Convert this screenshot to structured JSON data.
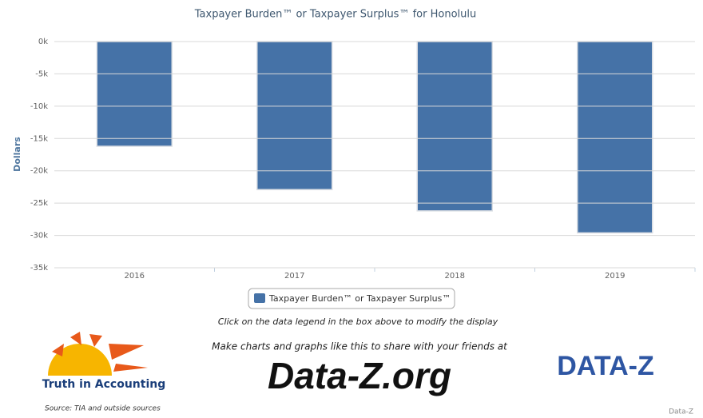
{
  "chart_data": {
    "type": "bar",
    "title": "Taxpayer Burden™ or Taxpayer Surplus™ for Honolulu",
    "y_label": "Dollars",
    "categories": [
      "2016",
      "2017",
      "2018",
      "2019"
    ],
    "series": [
      {
        "name": "Taxpayer Burden™ or Taxpayer Surplus™",
        "color": "#4572a7",
        "values": [
          -16200,
          -22900,
          -26200,
          -29600
        ]
      }
    ],
    "ylim": [
      -35000,
      0
    ],
    "yticks": [
      {
        "value": 0,
        "label": "0k"
      },
      {
        "value": -5000,
        "label": "-5k"
      },
      {
        "value": -10000,
        "label": "-10k"
      },
      {
        "value": -15000,
        "label": "-15k"
      },
      {
        "value": -20000,
        "label": "-20k"
      },
      {
        "value": -25000,
        "label": "-25k"
      },
      {
        "value": -30000,
        "label": "-30k"
      },
      {
        "value": -35000,
        "label": "-35k"
      }
    ],
    "grid": true,
    "note": "Click on the data legend in the box above to modify the display"
  },
  "footer": {
    "promo": "Make charts and graphs like this to share with your friends at",
    "site": "Data-Z.org",
    "tia_logo": "Truth in Accounting",
    "source": "Source: TIA and outside sources",
    "dataz_logo": "DATA-Z",
    "credit": "Data-Z"
  }
}
